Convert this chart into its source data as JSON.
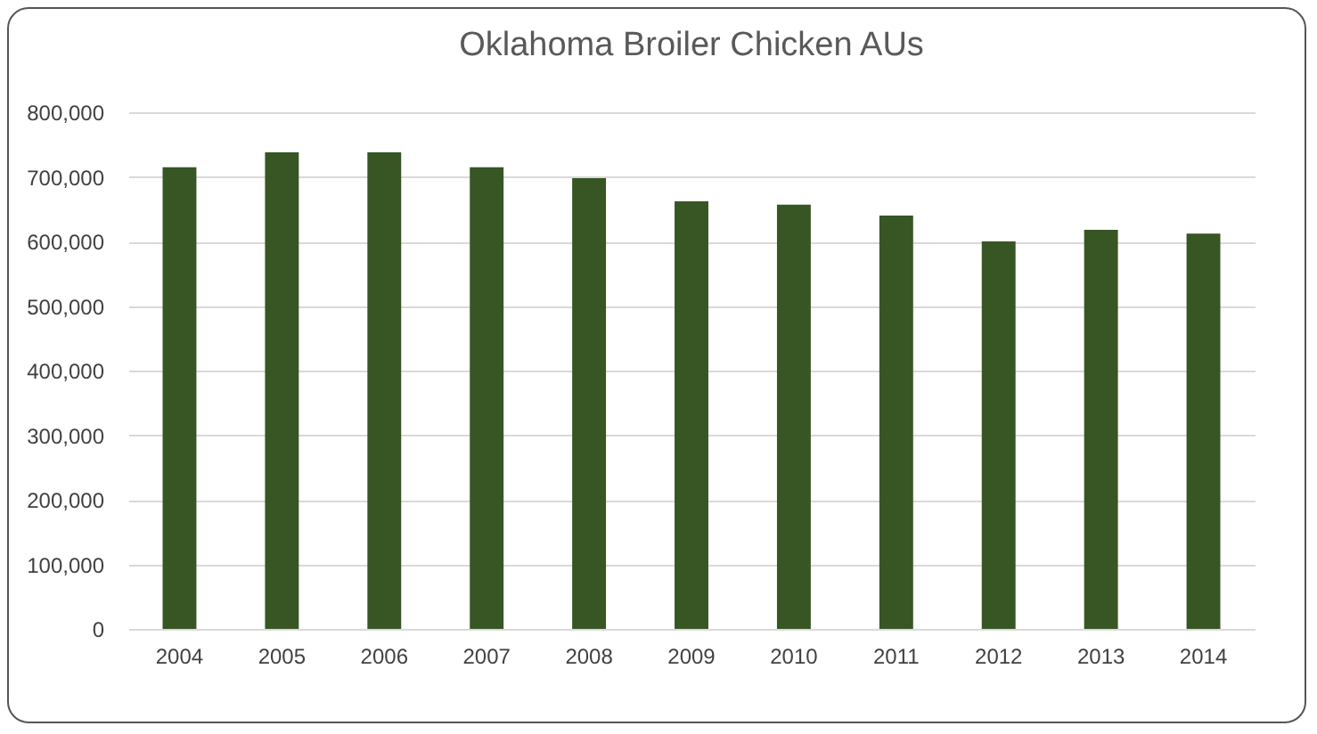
{
  "chart_data": {
    "type": "bar",
    "title": "Oklahoma Broiler Chicken AUs",
    "categories": [
      "2004",
      "2005",
      "2006",
      "2007",
      "2008",
      "2009",
      "2010",
      "2011",
      "2012",
      "2013",
      "2014"
    ],
    "values": [
      715000,
      738000,
      738000,
      715000,
      698000,
      662000,
      657000,
      640000,
      600000,
      618000,
      612000
    ],
    "color": "#375623",
    "ylim": [
      0,
      800000
    ],
    "yticks": [
      0,
      {
        "value": 100000,
        "label": "100,000"
      },
      {
        "value": 200000,
        "label": "200,000"
      },
      {
        "value": 300000,
        "label": "300,000"
      },
      {
        "value": 400000,
        "label": "400,000"
      },
      {
        "value": 500000,
        "label": "500,000"
      },
      {
        "value": 600000,
        "label": "600,000"
      },
      {
        "value": 700000,
        "label": "700,000"
      },
      {
        "value": 800000,
        "label": "800,000"
      }
    ],
    "grid": "y"
  }
}
